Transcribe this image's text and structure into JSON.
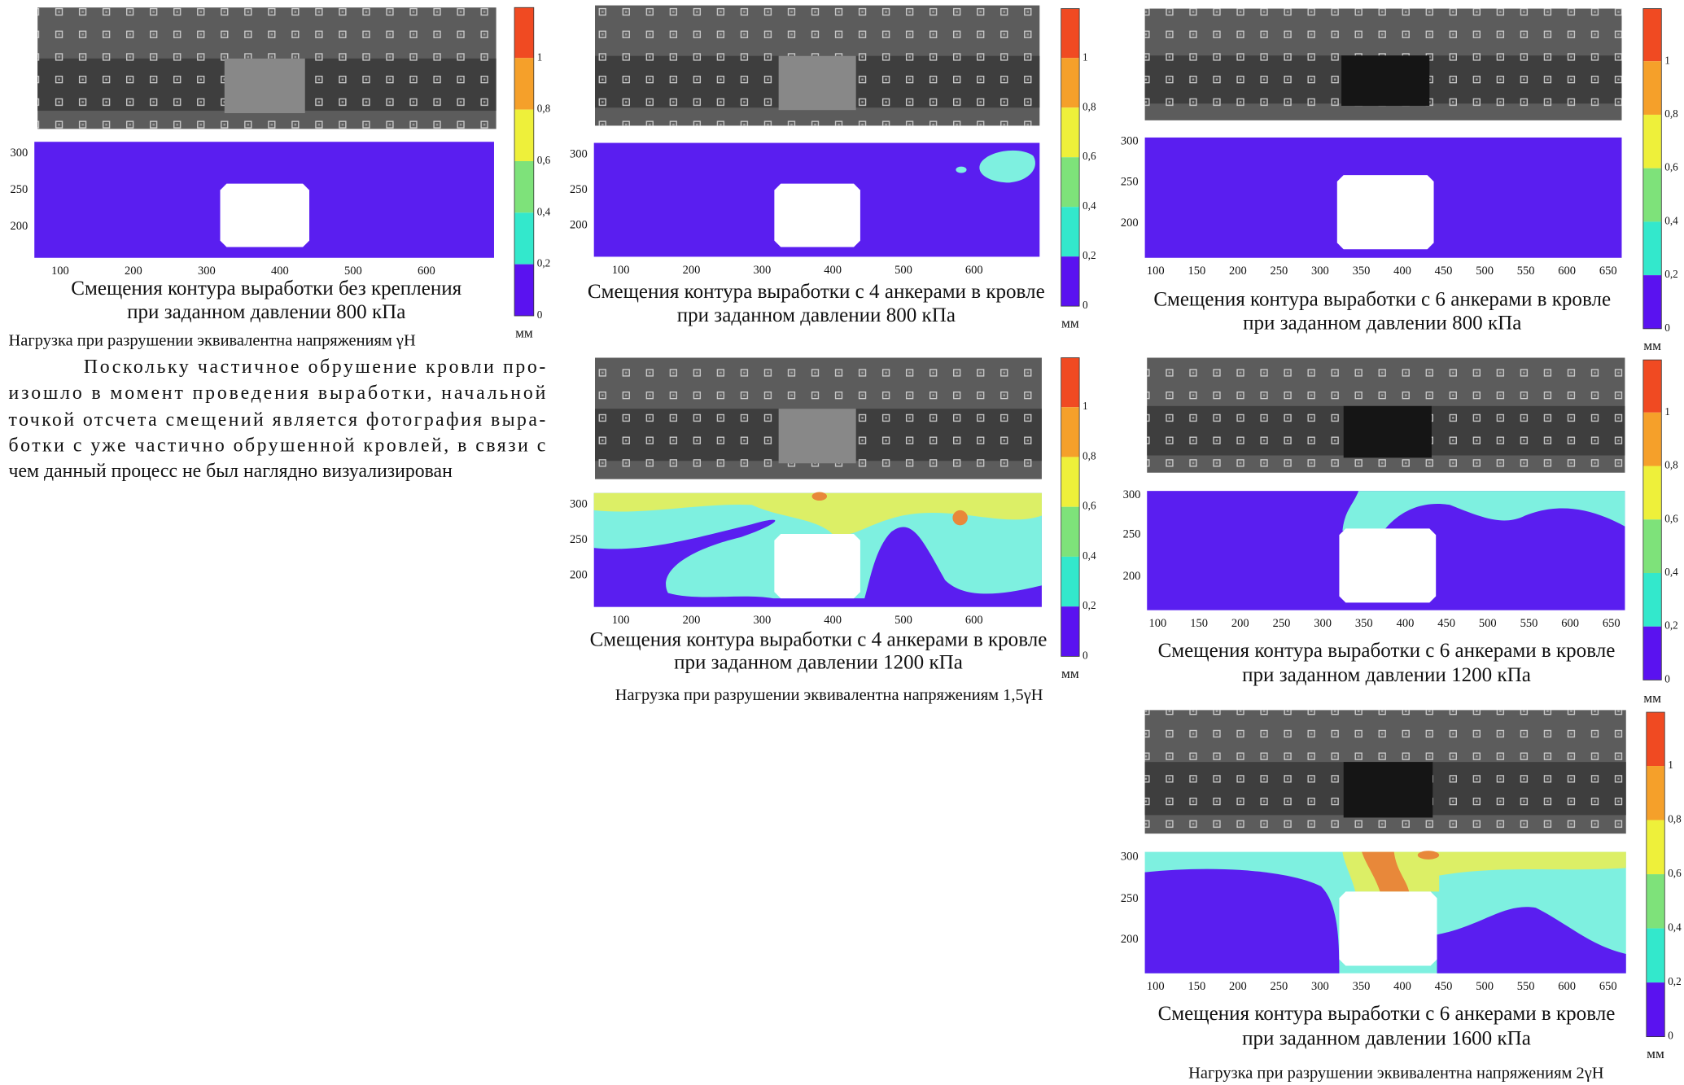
{
  "panels": [
    {
      "caption": [
        "Смещения контура выработки без крепления",
        "при заданном давлении 800 кПа"
      ],
      "xticks": [
        "100",
        "200",
        "300",
        "400",
        "500",
        "600"
      ],
      "yticks": [
        "300",
        "250",
        "200"
      ],
      "colorbar": [
        "1",
        "0,8",
        "0,6",
        "0,4",
        "0,2",
        "0"
      ],
      "unit": "мм"
    },
    {
      "caption": [
        "Смещения контура выработки с 4 анкерами в кровле",
        "при заданном давлении 800 кПа"
      ],
      "xticks": [
        "100",
        "200",
        "300",
        "400",
        "500",
        "600"
      ],
      "yticks": [
        "300",
        "250",
        "200"
      ],
      "colorbar": [
        "1",
        "0,8",
        "0,6",
        "0,4",
        "0,2",
        "0"
      ],
      "unit": "мм"
    },
    {
      "caption": [
        "Смещения контура выработки с 4 анкерами в кровле",
        "при заданном давлении 1200 кПа"
      ],
      "xticks": [
        "100",
        "200",
        "300",
        "400",
        "500",
        "600"
      ],
      "yticks": [
        "300",
        "250",
        "200"
      ],
      "colorbar": [
        "1",
        "0,8",
        "0,6",
        "0,4",
        "0,2",
        "0"
      ],
      "unit": "мм"
    },
    {
      "caption": [
        "Смещения контура выработки с 6 анкерами в кровле",
        "при заданном давлении 800 кПа"
      ],
      "xticks": [
        "100",
        "150",
        "200",
        "250",
        "300",
        "350",
        "400",
        "450",
        "500",
        "550",
        "600",
        "650"
      ],
      "yticks": [
        "300",
        "250",
        "200"
      ],
      "colorbar": [
        "1",
        "0,8",
        "0,6",
        "0,4",
        "0,2",
        "0"
      ],
      "unit": "мм"
    },
    {
      "caption": [
        "Смещения контура выработки с 6 анкерами в кровле",
        "при заданном давлении 1200 кПа"
      ],
      "xticks": [
        "100",
        "150",
        "200",
        "250",
        "300",
        "350",
        "400",
        "450",
        "500",
        "550",
        "600",
        "650"
      ],
      "yticks": [
        "300",
        "250",
        "200"
      ],
      "colorbar": [
        "1",
        "0,8",
        "0,6",
        "0,4",
        "0,2",
        "0"
      ],
      "unit": "мм"
    },
    {
      "caption": [
        "Смещения контура выработки с 6 анкерами в кровле",
        "при заданном давлении 1600 кПа"
      ],
      "xticks": [
        "100",
        "150",
        "200",
        "250",
        "300",
        "350",
        "400",
        "450",
        "500",
        "550",
        "600",
        "650"
      ],
      "yticks": [
        "300",
        "250",
        "200"
      ],
      "colorbar": [
        "1",
        "0,8",
        "0,6",
        "0,4",
        "0,2",
        "0"
      ],
      "unit": "мм"
    }
  ],
  "notes": [
    "Нагрузка при разрушении эквивалентна напряжениям γH",
    "Нагрузка при разрушении эквивалентна напряжениям 1,5γH",
    "Нагрузка при разрушении эквивалентна напряжениям 2γH"
  ],
  "paragraph": [
    "Поскольку частичное обрушение кровли про-",
    "изошло в момент проведения выработки, начальной",
    "точкой отсчета смещений является фотография выра-",
    "ботки с уже частично обрушенной кровлей, в связи с",
    "чем данный процесс не был наглядно визуализирован"
  ]
}
